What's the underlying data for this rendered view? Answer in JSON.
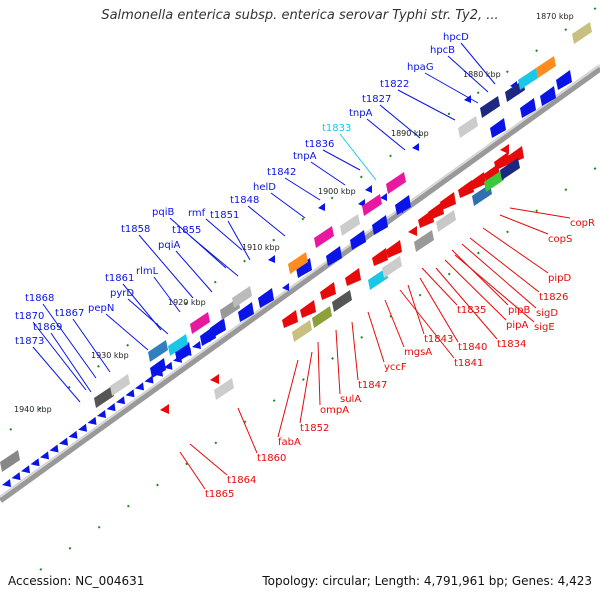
{
  "title": "Salmonella enterica subsp. enterica serovar Typhi str. Ty2, ...",
  "footer": {
    "accession": "Accession: NC_004631",
    "summary": "Topology: circular; Length: 4,791,961 bp; Genes: 4,423"
  },
  "colors": {
    "forward": "#0a14e6",
    "reverse": "#e60a0a",
    "highlight": "#19c8e6",
    "backbone": "#888888",
    "ticks": "#1e8c1e"
  },
  "ticks": [
    {
      "label": "1870 kbp"
    },
    {
      "label": "1880 kbp"
    },
    {
      "label": "1890 kbp"
    },
    {
      "label": "1900 kbp"
    },
    {
      "label": "1910 kbp"
    },
    {
      "label": "1920 kbp"
    },
    {
      "label": "1930 kbp"
    },
    {
      "label": "1940 kbp"
    }
  ],
  "genes_top": [
    {
      "label": "hpcD"
    },
    {
      "label": "hpcB"
    },
    {
      "label": "hpaG"
    },
    {
      "label": "t1822"
    },
    {
      "label": "t1827"
    },
    {
      "label": "tnpA"
    },
    {
      "label": "t1833"
    },
    {
      "label": "t1836"
    },
    {
      "label": "tnpA"
    },
    {
      "label": "t1842"
    },
    {
      "label": "helD"
    },
    {
      "label": "t1848"
    },
    {
      "label": "rmf"
    },
    {
      "label": "t1851"
    },
    {
      "label": "pqiB"
    },
    {
      "label": "t1855"
    },
    {
      "label": "t1858"
    },
    {
      "label": "pqiA"
    },
    {
      "label": "rlmL"
    },
    {
      "label": "t1861"
    },
    {
      "label": "pyrD"
    },
    {
      "label": "t1868"
    },
    {
      "label": "t1867"
    },
    {
      "label": "pepN"
    },
    {
      "label": "t1870"
    },
    {
      "label": "t1869"
    },
    {
      "label": "t1873"
    }
  ],
  "genes_bottom": [
    {
      "label": "copR"
    },
    {
      "label": "copS"
    },
    {
      "label": "pipD"
    },
    {
      "label": "t1826"
    },
    {
      "label": "sigD"
    },
    {
      "label": "pipB"
    },
    {
      "label": "sigE"
    },
    {
      "label": "pipA"
    },
    {
      "label": "t1834"
    },
    {
      "label": "t1835"
    },
    {
      "label": "t1840"
    },
    {
      "label": "t1843"
    },
    {
      "label": "t1841"
    },
    {
      "label": "mgsA"
    },
    {
      "label": "yccF"
    },
    {
      "label": "t1847"
    },
    {
      "label": "sulA"
    },
    {
      "label": "ompA"
    },
    {
      "label": "t1852"
    },
    {
      "label": "fabA"
    },
    {
      "label": "t1860"
    },
    {
      "label": "t1864"
    },
    {
      "label": "t1865"
    }
  ]
}
